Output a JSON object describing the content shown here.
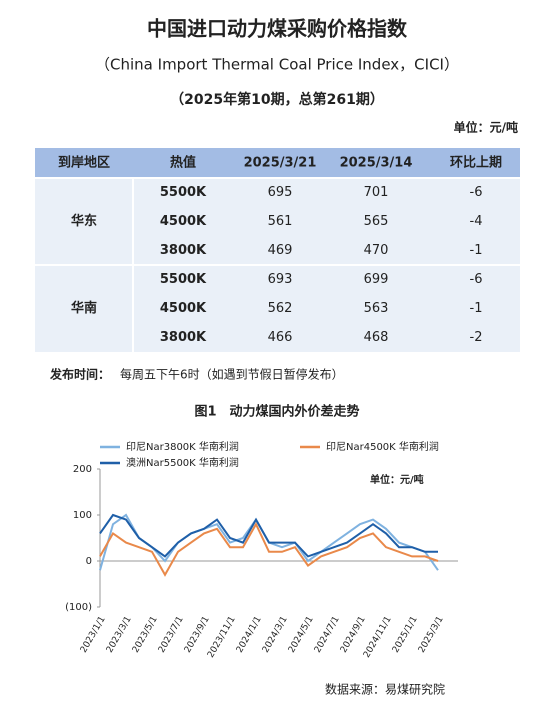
{
  "header": {
    "title": "中国进口动力煤采购价格指数",
    "subtitle": "（China Import Thermal Coal Price Index，CICI）",
    "issue": "（2025年第10期，总第261期）",
    "unit": "单位：元/吨"
  },
  "table": {
    "columns": [
      "到岸地区",
      "热值",
      "2025/3/21",
      "2025/3/14",
      "环比上期"
    ],
    "groups": [
      {
        "region": "华东",
        "rows": [
          [
            "5500K",
            695,
            701,
            -6
          ],
          [
            "4500K",
            561,
            565,
            -4
          ],
          [
            "3800K",
            469,
            470,
            -1
          ]
        ]
      },
      {
        "region": "华南",
        "rows": [
          [
            "5500K",
            693,
            699,
            -6
          ],
          [
            "4500K",
            562,
            563,
            -1
          ],
          [
            "3800K",
            466,
            468,
            -2
          ]
        ]
      }
    ]
  },
  "release_label": "发布时间：",
  "release_note": "每周五下午6时（如遇到节假日暂停发布）",
  "chart_data": {
    "type": "line",
    "title": "图1　动力煤国内外价差走势",
    "annotation": "单位：元/吨",
    "source": "数据来源：易煤研究院",
    "categories": [
      "2023/1/1",
      null,
      "2023/3/1",
      null,
      "2023/5/1",
      null,
      "2023/7/1",
      null,
      "2023/9/1",
      null,
      "2023/11/1",
      null,
      "2024/1/1",
      null,
      "2024/3/1",
      null,
      "2024/5/1",
      null,
      "2024/7/1",
      null,
      "2024/9/1",
      null,
      "2024/11/1",
      null,
      "2025/1/1",
      null,
      "2025/3/1"
    ],
    "series": [
      {
        "name": "印尼Nar3800K 华南利润",
        "color": "#7fb2e0",
        "values": [
          -20,
          80,
          100,
          50,
          30,
          0,
          40,
          60,
          70,
          80,
          40,
          50,
          90,
          40,
          30,
          40,
          0,
          20,
          40,
          60,
          80,
          90,
          70,
          40,
          30,
          20,
          -20
        ]
      },
      {
        "name": "印尼Nar4500K 华南利润",
        "color": "#e9894a",
        "values": [
          10,
          60,
          40,
          30,
          20,
          -30,
          20,
          40,
          60,
          70,
          30,
          30,
          80,
          20,
          20,
          30,
          -10,
          10,
          20,
          30,
          50,
          60,
          30,
          20,
          10,
          10,
          0
        ]
      },
      {
        "name": "澳洲Nar5500K 华南利润",
        "color": "#1f5fa8",
        "values": [
          60,
          100,
          90,
          50,
          30,
          10,
          40,
          60,
          70,
          90,
          50,
          40,
          90,
          40,
          40,
          40,
          10,
          20,
          30,
          40,
          60,
          80,
          60,
          30,
          30,
          20,
          20
        ]
      }
    ],
    "ylim": [
      -100,
      200
    ],
    "yticks": [
      200,
      100,
      0,
      {
        "value": -100,
        "label": "(100)"
      }
    ]
  }
}
